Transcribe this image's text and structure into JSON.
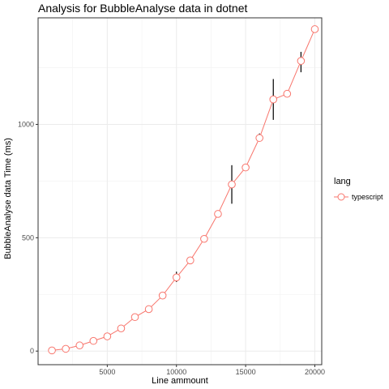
{
  "chart_data": {
    "type": "line",
    "title": "Analysis for BubbleAnalyse data in dotnet",
    "xlabel": "Line ammount",
    "ylabel": "BubbleAnalyse data Time (ms)",
    "xlim": [
      0,
      20500
    ],
    "ylim": [
      -60,
      1470
    ],
    "x_ticks": [
      5000,
      10000,
      15000,
      20000
    ],
    "y_ticks": [
      0,
      500,
      1000
    ],
    "grid": true,
    "legend": {
      "title": "lang",
      "placement": "right"
    },
    "series": [
      {
        "name": "typescript",
        "color": "#F8766D",
        "x": [
          1000,
          2000,
          3000,
          4000,
          5000,
          6000,
          7000,
          8000,
          9000,
          10000,
          11000,
          12000,
          13000,
          14000,
          15000,
          16000,
          17000,
          18000,
          19000,
          20000
        ],
        "y": [
          3,
          10,
          25,
          45,
          65,
          100,
          150,
          185,
          245,
          325,
          400,
          495,
          605,
          735,
          810,
          940,
          1110,
          1135,
          1280,
          1420
        ],
        "err_low": [
          3,
          10,
          25,
          45,
          65,
          100,
          150,
          185,
          245,
          305,
          400,
          495,
          590,
          650,
          810,
          930,
          1020,
          1135,
          1230,
          1420
        ],
        "err_high": [
          3,
          10,
          25,
          45,
          65,
          100,
          150,
          185,
          245,
          350,
          400,
          495,
          620,
          820,
          810,
          960,
          1200,
          1135,
          1320,
          1420
        ]
      }
    ]
  }
}
